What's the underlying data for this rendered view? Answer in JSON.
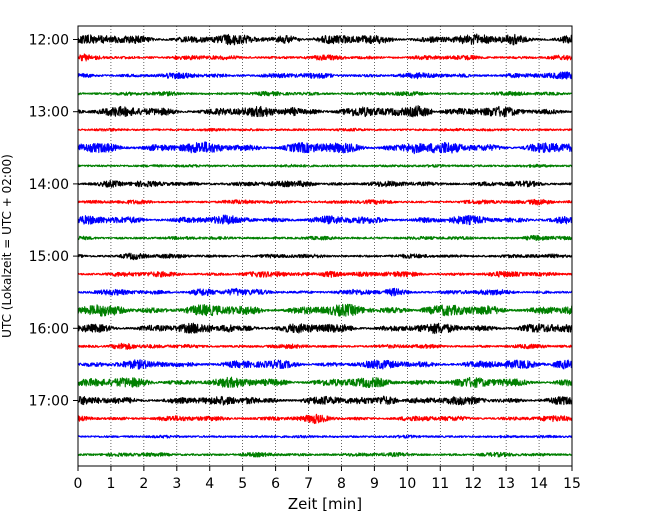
{
  "chart_data": {
    "type": "line",
    "chart_kind": "helicorder",
    "xlabel": "Zeit  [min]",
    "ylabel": "UTC (Lokalzeit = UTC + 02:00)",
    "xlim": [
      0,
      15
    ],
    "x_ticks": [
      "0",
      "1",
      "2",
      "3",
      "4",
      "5",
      "6",
      "7",
      "8",
      "9",
      "10",
      "11",
      "12",
      "13",
      "14",
      "15"
    ],
    "y_tick_labels": [
      "12:00",
      "13:00",
      "14:00",
      "15:00",
      "16:00",
      "17:00"
    ],
    "start_time": "12:00",
    "trace_interval_minutes": 15,
    "trace_count": 24,
    "grid": "vertical dotted lines at each minute",
    "trace_colors": [
      "#000000",
      "#ff0000",
      "#0000ff",
      "#008000"
    ],
    "trace_amplitude": [
      0.7,
      0.35,
      0.4,
      0.3,
      0.7,
      0.2,
      0.8,
      0.2,
      0.4,
      0.3,
      0.6,
      0.25,
      0.3,
      0.4,
      0.4,
      0.8,
      0.7,
      0.3,
      0.6,
      0.7,
      0.6,
      0.4,
      0.2,
      0.3
    ],
    "events": [
      {
        "trace": 0,
        "minute": 6.3,
        "amp": 0.6
      },
      {
        "trace": 0,
        "minute": 13.2,
        "amp": 0.75
      },
      {
        "trace": 1,
        "minute": 0.2,
        "amp": 0.5
      },
      {
        "trace": 2,
        "minute": 14.8,
        "amp": 0.6
      },
      {
        "trace": 4,
        "minute": 10.3,
        "amp": 0.85
      },
      {
        "trace": 4,
        "minute": 6.5,
        "amp": 0.6
      },
      {
        "trace": 6,
        "minute": 10.2,
        "amp": 0.8
      },
      {
        "trace": 6,
        "minute": 6.8,
        "amp": 0.55
      },
      {
        "trace": 8,
        "minute": 1.0,
        "amp": 0.5
      },
      {
        "trace": 8,
        "minute": 6.8,
        "amp": 0.45
      },
      {
        "trace": 9,
        "minute": 14.0,
        "amp": 0.45
      },
      {
        "trace": 10,
        "minute": 4.5,
        "amp": 0.75
      },
      {
        "trace": 11,
        "minute": 13.9,
        "amp": 0.4
      },
      {
        "trace": 12,
        "minute": 1.7,
        "amp": 0.5
      },
      {
        "trace": 13,
        "minute": 6.0,
        "amp": 0.4
      },
      {
        "trace": 13,
        "minute": 7.7,
        "amp": 0.45
      },
      {
        "trace": 14,
        "minute": 3.8,
        "amp": 0.55
      },
      {
        "trace": 14,
        "minute": 4.8,
        "amp": 0.55
      },
      {
        "trace": 14,
        "minute": 9.6,
        "amp": 0.55
      },
      {
        "trace": 15,
        "minute": 10.8,
        "amp": 0.55
      },
      {
        "trace": 16,
        "minute": 4.6,
        "amp": 0.55
      },
      {
        "trace": 17,
        "minute": 1.4,
        "amp": 0.5
      },
      {
        "trace": 18,
        "minute": 14.8,
        "amp": 0.65
      },
      {
        "trace": 19,
        "minute": 1.5,
        "amp": 0.75
      },
      {
        "trace": 20,
        "minute": 5.2,
        "amp": 0.5
      },
      {
        "trace": 20,
        "minute": 9.3,
        "amp": 0.65
      },
      {
        "trace": 21,
        "minute": 7.2,
        "amp": 0.7
      }
    ]
  }
}
